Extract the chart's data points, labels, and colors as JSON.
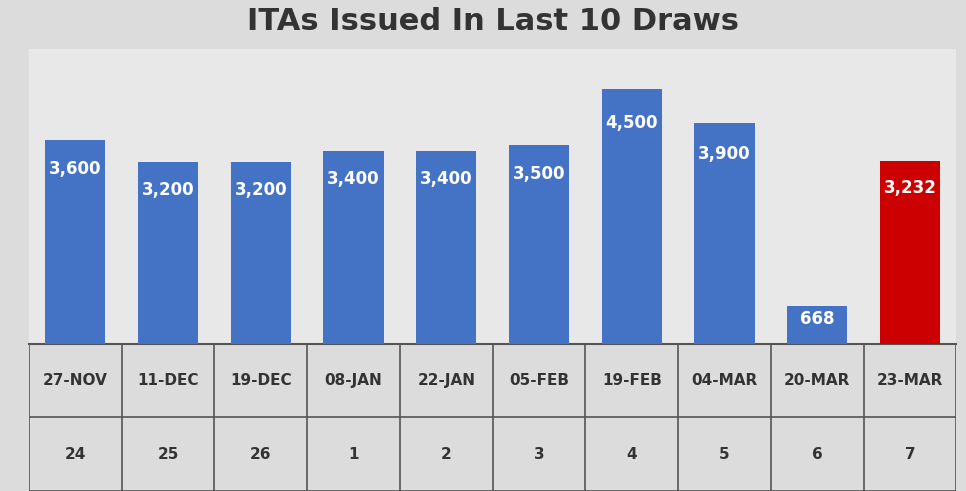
{
  "title": "ITAs Issued In Last 10 Draws",
  "categories_line1": [
    "27-NOV",
    "11-DEC",
    "19-DEC",
    "08-JAN",
    "22-JAN",
    "05-FEB",
    "19-FEB",
    "04-MAR",
    "20-MAR",
    "23-MAR"
  ],
  "categories_line2": [
    "24",
    "25",
    "26",
    "1",
    "2",
    "3",
    "4",
    "5",
    "6",
    "7"
  ],
  "values": [
    3600,
    3200,
    3200,
    3400,
    3400,
    3500,
    4500,
    3900,
    668,
    3232
  ],
  "bar_colors": [
    "#4472C4",
    "#4472C4",
    "#4472C4",
    "#4472C4",
    "#4472C4",
    "#4472C4",
    "#4472C4",
    "#4472C4",
    "#4472C4",
    "#CC0000"
  ],
  "label_color": "white",
  "title_fontsize": 22,
  "label_fontsize": 12,
  "tick_fontsize": 11,
  "background_color": "#DCDCDC",
  "plot_bg_color": "#E8E8E8",
  "grid_color": "#BBBBBB",
  "ylim": [
    0,
    5200
  ],
  "bar_width": 0.65
}
